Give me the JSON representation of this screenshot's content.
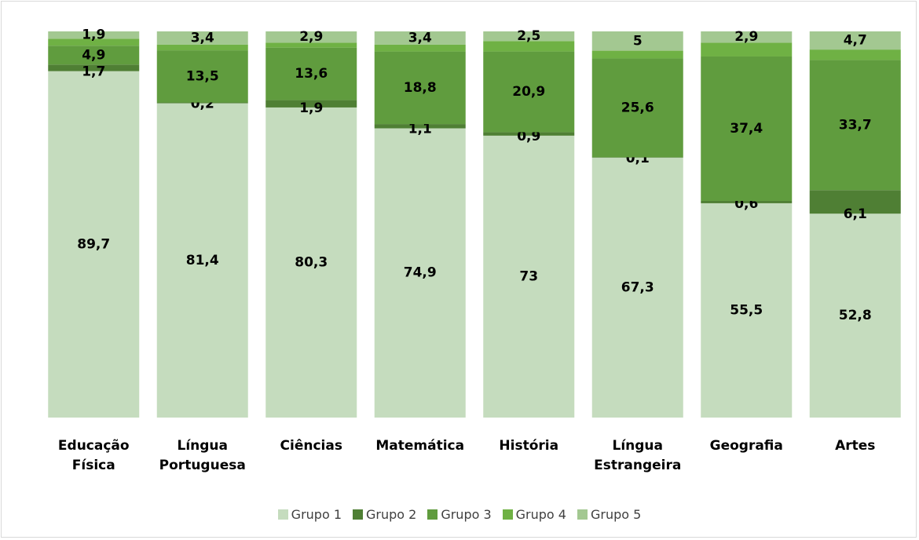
{
  "chart_data": {
    "type": "stacked_bar",
    "categories": [
      "Educação Física",
      "Língua Portuguesa",
      "Ciências",
      "Matemática",
      "História",
      "Língua Estrangeira",
      "Geografia",
      "Artes"
    ],
    "ylim": [
      0,
      100
    ],
    "series": [
      {
        "name": "Grupo 1",
        "color": "#c5dcbe",
        "values": [
          89.7,
          81.4,
          80.3,
          74.9,
          73,
          67.3,
          55.5,
          52.8
        ],
        "value_labels": [
          "89,7",
          "81,4",
          "80,3",
          "74,9",
          "73",
          "67,3",
          "55,5",
          "52,8"
        ]
      },
      {
        "name": "Grupo 2",
        "color": "#4f7f34",
        "values": [
          1.7,
          0.2,
          1.9,
          1.1,
          0.9,
          0.1,
          0.6,
          6.1
        ],
        "value_labels": [
          "1,7",
          "0,2",
          "1,9",
          "1,1",
          "0,9",
          "0,1",
          "0,6",
          "6,1"
        ]
      },
      {
        "name": "Grupo 3",
        "color": "#609c3e",
        "values": [
          4.9,
          13.5,
          13.6,
          18.8,
          20.9,
          25.6,
          37.4,
          33.7
        ],
        "value_labels": [
          "4,9",
          "13,5",
          "13,6",
          "18,8",
          "20,9",
          "25,6",
          "37,4",
          "33,7"
        ]
      },
      {
        "name": "Grupo 4",
        "color": "#6fb144",
        "values": [
          1.8,
          1.5,
          1.3,
          1.8,
          2.7,
          2.0,
          3.6,
          2.7
        ]
      },
      {
        "name": "Grupo 5",
        "color": "#a3c891",
        "values": [
          1.9,
          3.4,
          2.9,
          3.4,
          2.5,
          5,
          2.9,
          4.7
        ],
        "value_labels": [
          "1,9",
          "3,4",
          "2,9",
          "3,4",
          "2,5",
          "5",
          "2,9",
          "4,7"
        ]
      }
    ],
    "legend": "bottom"
  }
}
